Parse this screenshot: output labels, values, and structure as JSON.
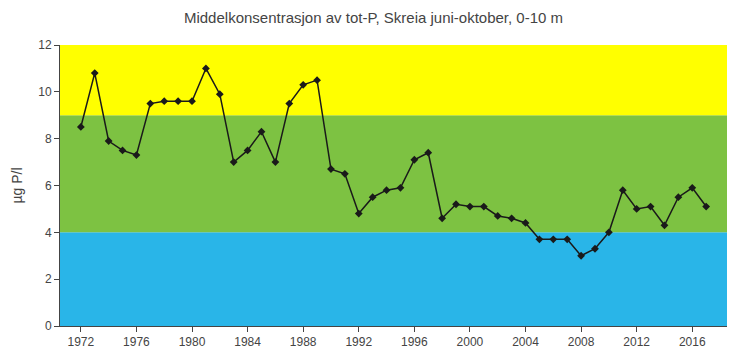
{
  "chart_data": {
    "type": "line",
    "title": "Middelkonsentrasjon av tot-P, Skreia juni-oktober, 0-10 m",
    "ylabel": "µg P/l",
    "x": [
      1972,
      1973,
      1974,
      1975,
      1976,
      1977,
      1978,
      1979,
      1980,
      1981,
      1982,
      1983,
      1984,
      1985,
      1986,
      1987,
      1988,
      1989,
      1990,
      1991,
      1992,
      1993,
      1994,
      1995,
      1996,
      1997,
      1998,
      1999,
      2000,
      2001,
      2002,
      2003,
      2004,
      2005,
      2006,
      2007,
      2008,
      2009,
      2010,
      2011,
      2012,
      2013,
      2014,
      2015,
      2016,
      2017
    ],
    "values": [
      8.5,
      10.8,
      7.9,
      7.5,
      7.3,
      9.5,
      9.6,
      9.6,
      9.6,
      11.0,
      9.9,
      7.0,
      7.5,
      8.3,
      7.0,
      9.5,
      10.3,
      10.5,
      6.7,
      6.5,
      4.8,
      5.5,
      5.8,
      5.9,
      7.1,
      7.4,
      4.6,
      5.2,
      5.1,
      5.1,
      4.7,
      4.6,
      4.4,
      3.7,
      3.7,
      3.7,
      3.0,
      3.3,
      4.0,
      5.8,
      5.0,
      5.1,
      4.3,
      5.5,
      5.9,
      5.1
    ],
    "color": "#1a1a1a",
    "marker": "diamond",
    "xlim": [
      1970.5,
      2018.5
    ],
    "ylim": [
      0,
      12
    ],
    "xticks": [
      1972,
      1976,
      1980,
      1984,
      1988,
      1992,
      1996,
      2000,
      2004,
      2008,
      2012,
      2016
    ],
    "yticks": [
      0,
      2,
      4,
      6,
      8,
      10,
      12
    ],
    "grid": false,
    "bands": [
      {
        "ymin": 0,
        "ymax": 4,
        "color": "#29b5e8"
      },
      {
        "ymin": 4,
        "ymax": 9,
        "color": "#7dc242"
      },
      {
        "ymin": 9,
        "ymax": 12,
        "color": "#ffff00"
      }
    ]
  }
}
